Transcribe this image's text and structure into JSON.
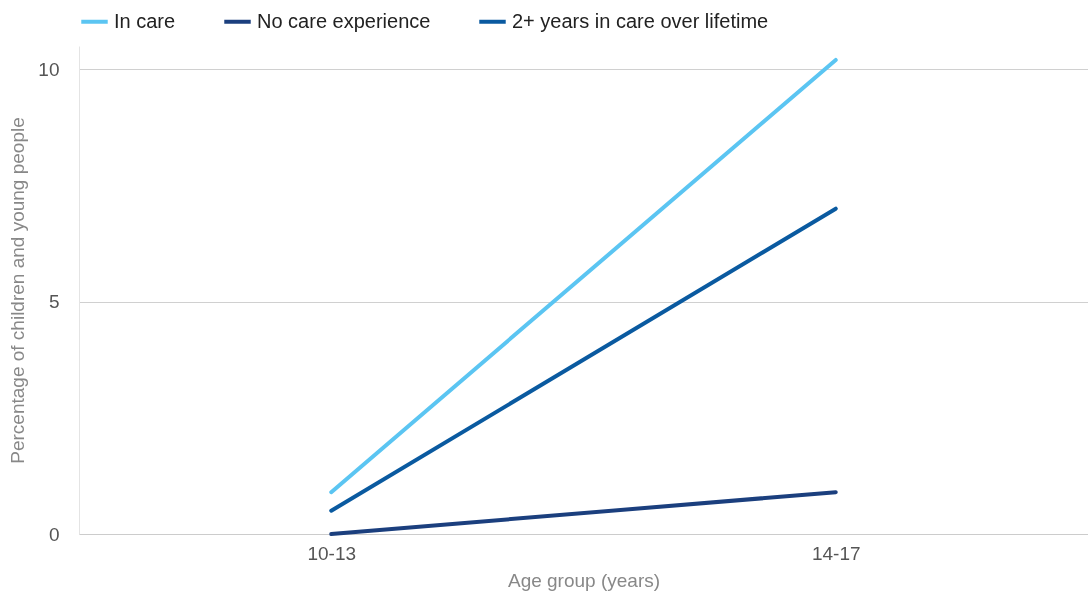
{
  "chart_data": {
    "type": "line",
    "xlabel": "Age group (years)",
    "ylabel": "Percentage of children and young people",
    "categories": [
      "10-13",
      "14-17"
    ],
    "series": [
      {
        "name": "In care",
        "color": "#5bc5f2",
        "values": [
          0.9,
          10.2
        ]
      },
      {
        "name": "No care experience",
        "color": "#1b3f7e",
        "values": [
          0,
          0.9
        ]
      },
      {
        "name": "2+ years in care over lifetime",
        "color": "#0a5aa0",
        "values": [
          0.5,
          7.0
        ]
      }
    ],
    "ylim": [
      0,
      10.5
    ],
    "yticks": [
      0,
      5,
      10
    ],
    "grid": "y",
    "legend": "top",
    "marker": "none",
    "line_style": "solid"
  }
}
